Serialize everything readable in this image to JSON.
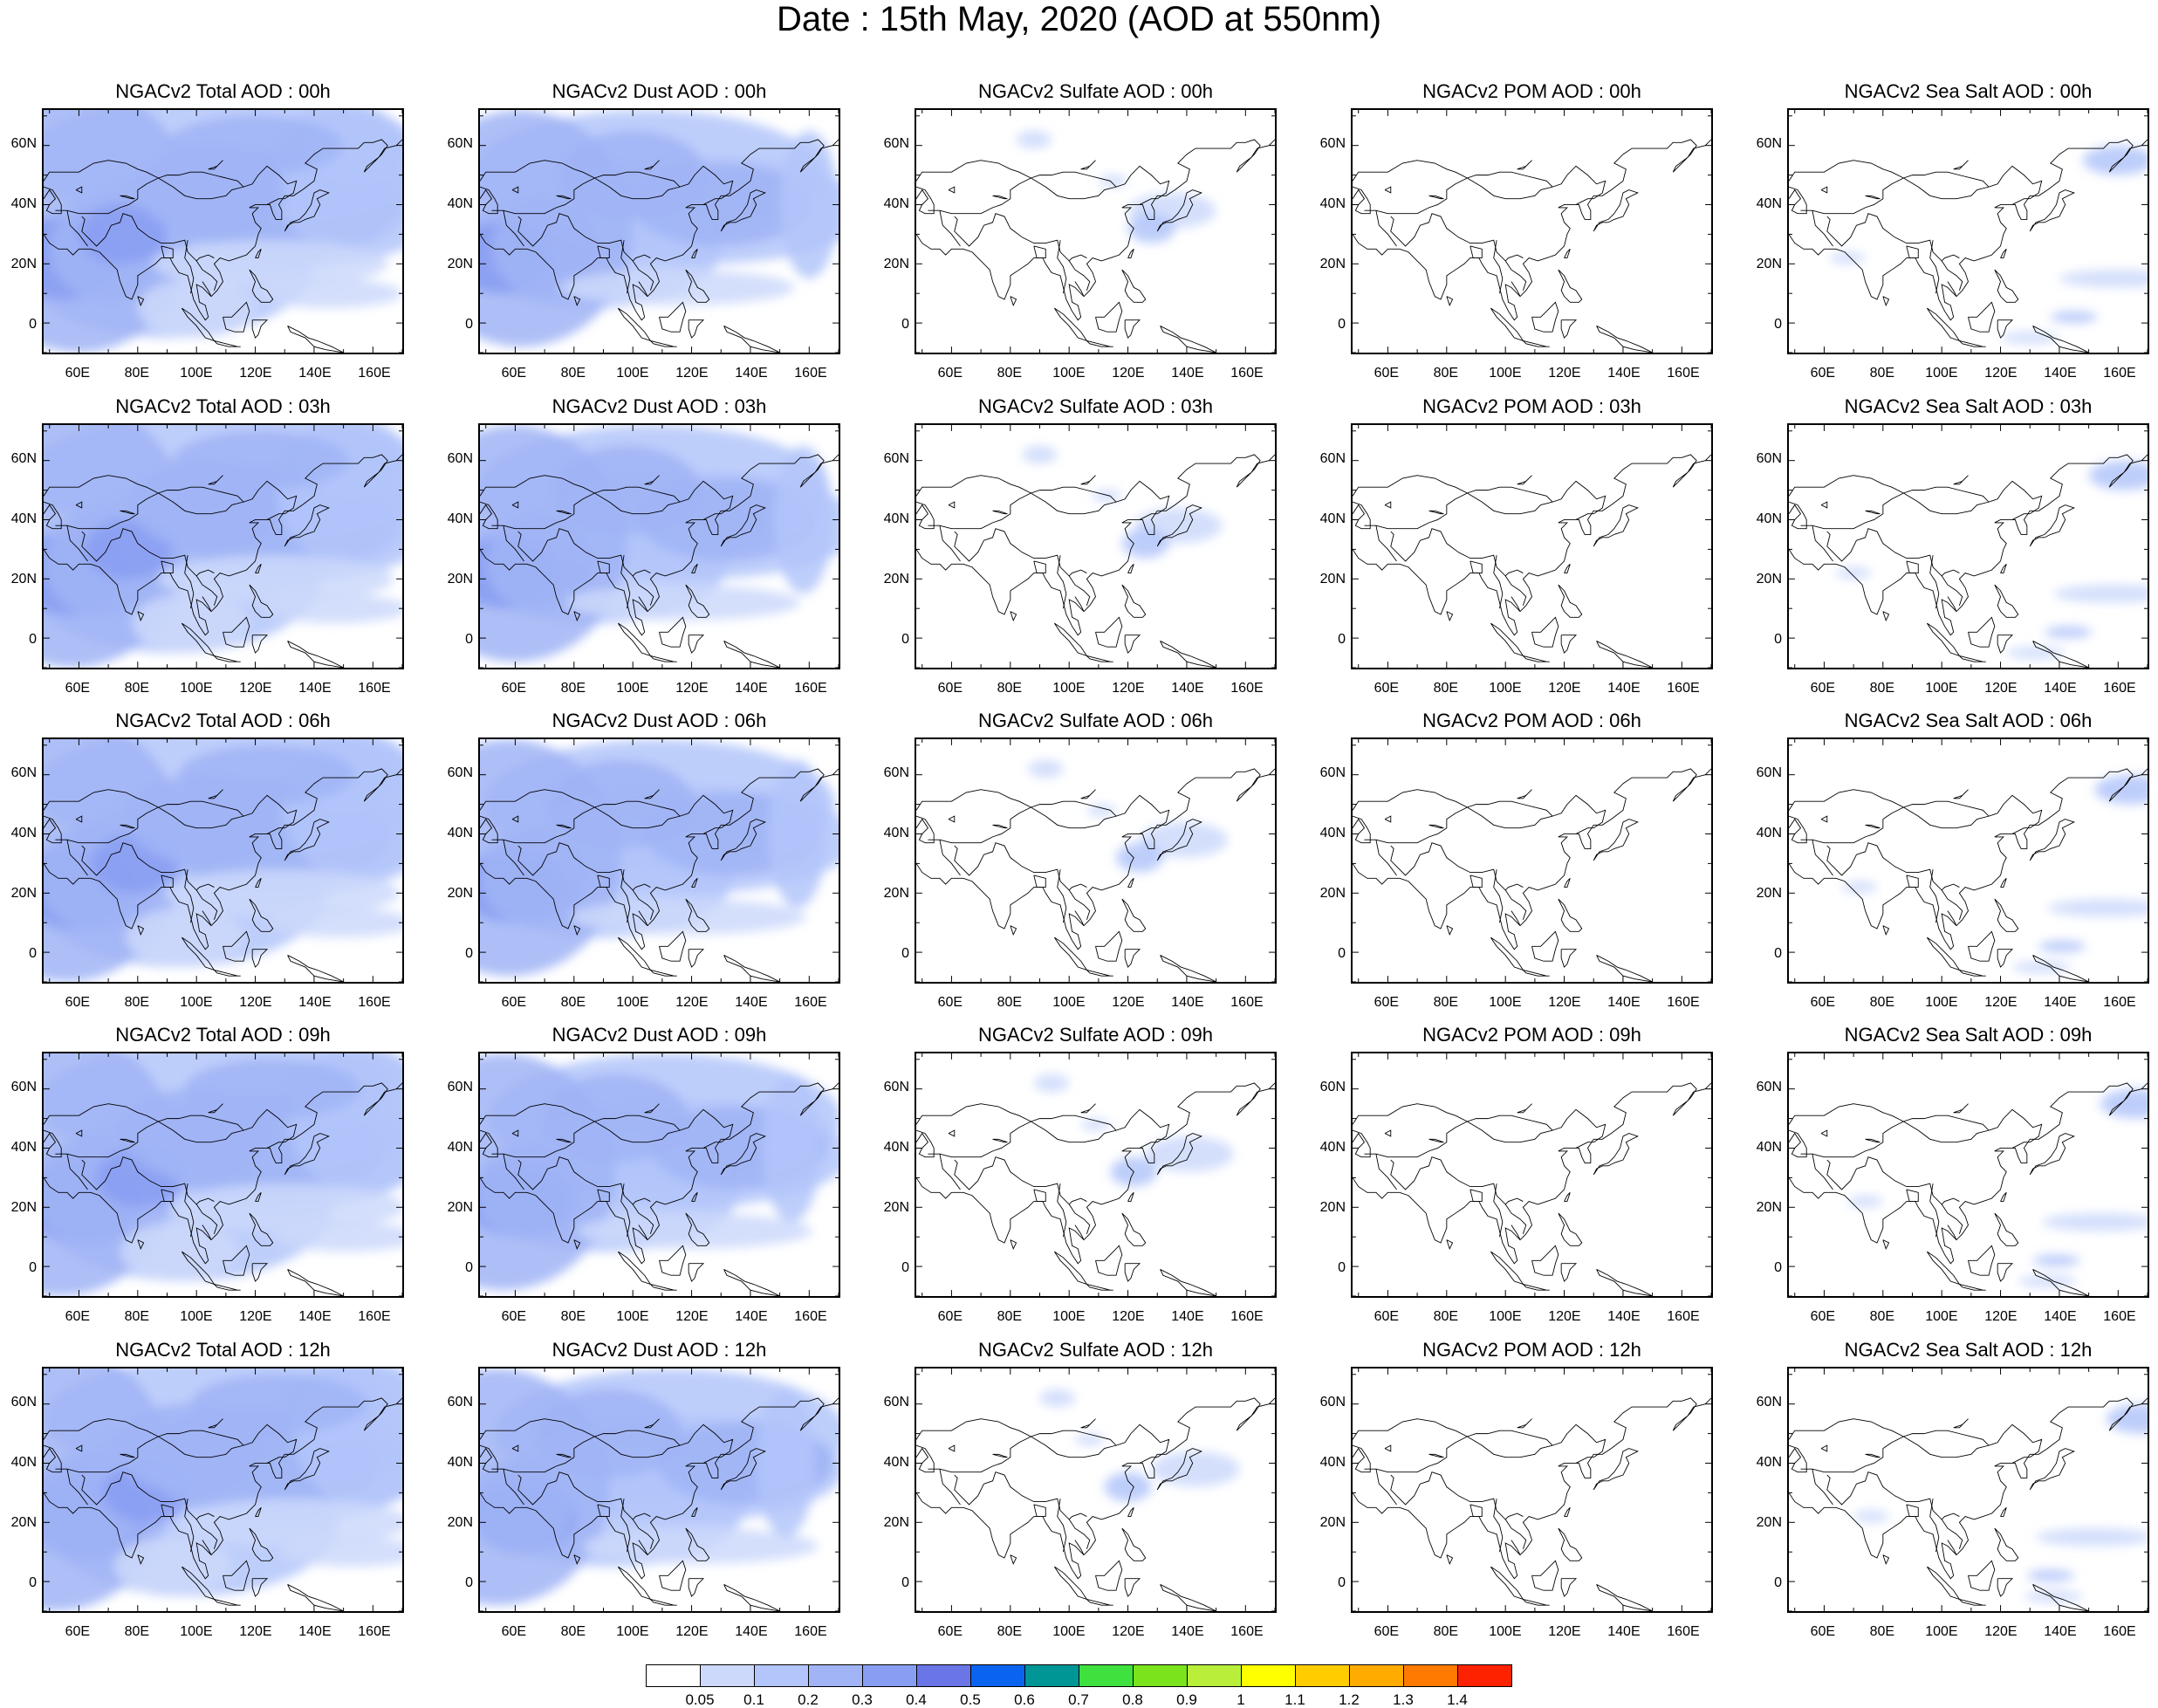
{
  "title": "Date : 15th May, 2020 (AOD at 550nm)",
  "lat_labels": [
    "60N",
    "40N",
    "20N",
    "0"
  ],
  "lon_labels": [
    "60E",
    "80E",
    "100E",
    "120E",
    "140E",
    "160E"
  ],
  "rows": [
    {
      "hour": "00h",
      "panels": [
        {
          "title": "NGACv2 Total AOD : 00h",
          "species": "total"
        },
        {
          "title": "NGACv2 Dust AOD : 00h",
          "species": "dust"
        },
        {
          "title": "NGACv2 Sulfate AOD : 00h",
          "species": "sulfate"
        },
        {
          "title": "NGACv2 POM AOD : 00h",
          "species": "pom"
        },
        {
          "title": "NGACv2 Sea Salt AOD : 00h",
          "species": "seasalt"
        }
      ]
    },
    {
      "hour": "03h",
      "panels": [
        {
          "title": "NGACv2 Total AOD : 03h",
          "species": "total"
        },
        {
          "title": "NGACv2 Dust AOD : 03h",
          "species": "dust"
        },
        {
          "title": "NGACv2 Sulfate AOD : 03h",
          "species": "sulfate"
        },
        {
          "title": "NGACv2 POM AOD : 03h",
          "species": "pom"
        },
        {
          "title": "NGACv2 Sea Salt AOD : 03h",
          "species": "seasalt"
        }
      ]
    },
    {
      "hour": "06h",
      "panels": [
        {
          "title": "NGACv2 Total AOD : 06h",
          "species": "total"
        },
        {
          "title": "NGACv2 Dust AOD : 06h",
          "species": "dust"
        },
        {
          "title": "NGACv2 Sulfate AOD : 06h",
          "species": "sulfate"
        },
        {
          "title": "NGACv2 POM AOD : 06h",
          "species": "pom"
        },
        {
          "title": "NGACv2 Sea Salt AOD : 06h",
          "species": "seasalt"
        }
      ]
    },
    {
      "hour": "09h",
      "panels": [
        {
          "title": "NGACv2 Total AOD : 09h",
          "species": "total"
        },
        {
          "title": "NGACv2 Dust AOD : 09h",
          "species": "dust"
        },
        {
          "title": "NGACv2 Sulfate AOD : 09h",
          "species": "sulfate"
        },
        {
          "title": "NGACv2 POM AOD : 09h",
          "species": "pom"
        },
        {
          "title": "NGACv2 Sea Salt  AOD : 09h",
          "species": "seasalt"
        }
      ]
    },
    {
      "hour": "12h",
      "panels": [
        {
          "title": "NGACv2 Total AOD  : 12h",
          "species": "total"
        },
        {
          "title": "NGACv2 Dust AOD : 12h",
          "species": "dust"
        },
        {
          "title": "NGACv2 Sulfate AOD : 12h",
          "species": "sulfate"
        },
        {
          "title": "NGACv2 POM  AOD : 12h",
          "species": "pom"
        },
        {
          "title": "NGACv2 Sea Salt  AOD : 12h",
          "species": "seasalt"
        }
      ]
    }
  ],
  "colorbar": {
    "colors": [
      "#ffffff",
      "#cdd9fb",
      "#b3c5fa",
      "#a0b4f6",
      "#899ef2",
      "#6a75e6",
      "#0a64f0",
      "#009696",
      "#3fe13f",
      "#7be31b",
      "#b9ef3a",
      "#ffff00",
      "#ffcc00",
      "#ffab00",
      "#ff7a00",
      "#ff2200"
    ],
    "labels": [
      "0.05",
      "0.1",
      "0.2",
      "0.3",
      "0.4",
      "0.5",
      "0.6",
      "0.7",
      "0.8",
      "0.9",
      "1",
      "1.1",
      "1.2",
      "1.3",
      "1.4"
    ]
  }
}
